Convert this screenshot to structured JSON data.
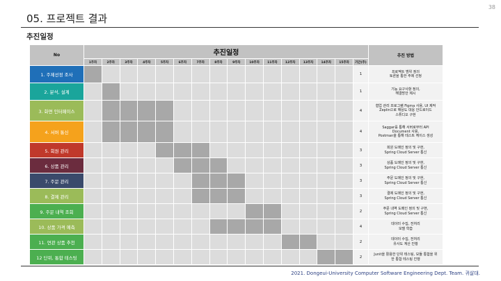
{
  "page_number": "38",
  "slide_title": "05. 프로젝트 결과",
  "section_title": "추진일정",
  "table": {
    "header_no": "No",
    "header_main": "추진일정",
    "header_method": "추진 방법",
    "weeks": [
      "1주차",
      "2주차",
      "3주차",
      "4주차",
      "5주차",
      "6주차",
      "7주차",
      "8주차",
      "9주차",
      "10주차",
      "11주차",
      "12주차",
      "13주차",
      "14주차",
      "15주차",
      "기간(주)"
    ],
    "rows": [
      {
        "label": "1. 주제선정 조사",
        "color": "#1f6fb8",
        "active": [
          1
        ],
        "period": "1",
        "method": "프로젝트 범위 정의\n토론을 통한 주제 선정"
      },
      {
        "label": "2. 분석, 설계",
        "color": "#1aa59b",
        "active": [
          2
        ],
        "period": "1",
        "method": "기능 요구사항 정의,\n해결방안 제시"
      },
      {
        "label": "3. 화면 인터페이스",
        "color": "#9bbb59",
        "active": [
          2,
          3,
          4,
          5
        ],
        "period": "4",
        "method": "협업 관리 프로그램 Figma 사용, UI 제작\nZeplin으로 해상도 대응 안드로이드\n스튜디오 구현"
      },
      {
        "label": "4. 서버 통신",
        "color": "#f5a21c",
        "active": [
          2,
          3,
          4,
          5
        ],
        "period": "4",
        "method": "Saggar를 통해 서버로부터 API\nDocument 사용,\nPostman을 통해 테스트 케이스 생성"
      },
      {
        "label": "5. 회원 관리",
        "color": "#c0392b",
        "active": [
          5,
          6,
          7
        ],
        "period": "3",
        "method": "회원 도메인 정의 및 구현,\nSpring Cloud Server 통신"
      },
      {
        "label": "6. 상품 관리",
        "color": "#6b2c3e",
        "active": [
          6,
          7,
          8
        ],
        "period": "3",
        "method": "상품 도메인 정의 및 구현,\nSpring Cloud Server 통신"
      },
      {
        "label": "7. 주문 관리",
        "color": "#3a4a6b",
        "active": [
          7,
          8,
          9
        ],
        "period": "3",
        "method": "주문 도메인 정의 및 구현,\nSpring Cloud Server 통신"
      },
      {
        "label": "8. 결제 관리",
        "color": "#9bbb59",
        "active": [
          7,
          8,
          9
        ],
        "period": "3",
        "method": "결제 도메인 정의 및 구현,\nSpring Cloud Server 통신"
      },
      {
        "label": "9. 주문 내역 조회",
        "color": "#4caf50",
        "active": [
          10,
          11
        ],
        "period": "2",
        "method": "주문 내역 도메인 정의 및 구현,\nSpring Cloud Server 통신"
      },
      {
        "label": "10. 상품 가격 예측",
        "color": "#9bbb59",
        "active": [
          8,
          9,
          10,
          11
        ],
        "period": "4",
        "method": "데이터 수집, 전처리\n모델 학습"
      },
      {
        "label": "11. 연관 상품 추천",
        "color": "#4caf50",
        "active": [
          12,
          13
        ],
        "period": "2",
        "method": "데이터 수집, 전처리\n유사도 계산 진행"
      },
      {
        "label": "12 단위, 통합 테스팅",
        "color": "#4caf50",
        "active": [
          14,
          15
        ],
        "period": "2",
        "method": "Junit을 활용한 단위 테스팅, 모듈 통합을 위\n한 통합 테스팅 진행"
      }
    ]
  },
  "footer": "2021. Dongeui-University Computer Software Engineering Dept. Team. 귀살대."
}
